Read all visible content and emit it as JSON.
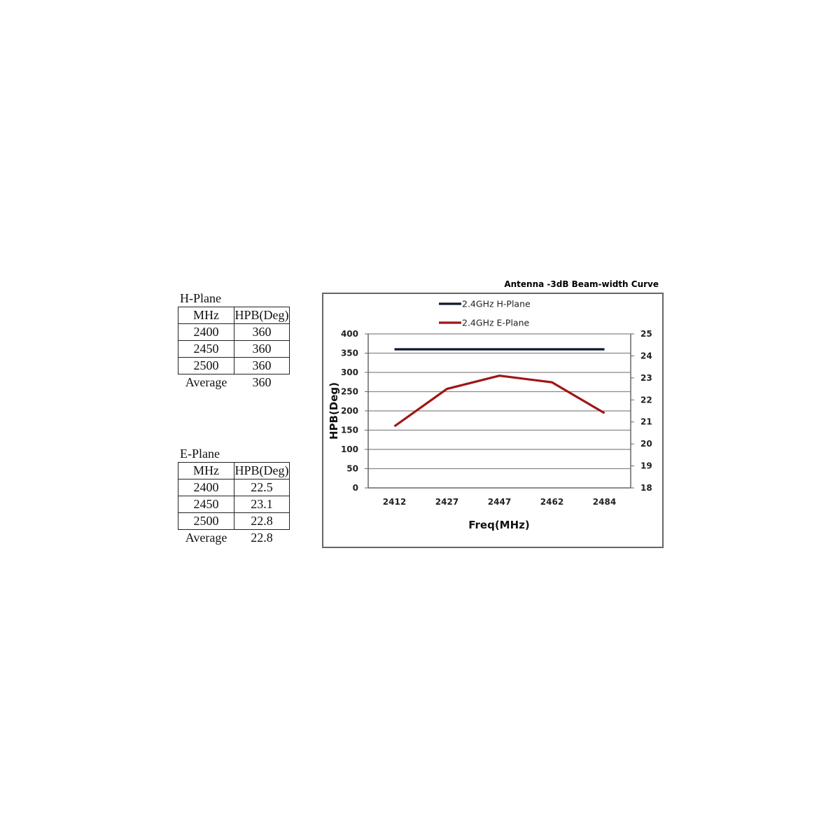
{
  "tables": [
    {
      "title": "H-Plane",
      "headers": [
        "MHz",
        "HPB(Deg)"
      ],
      "rows": [
        [
          "2400",
          "360"
        ],
        [
          "2450",
          "360"
        ],
        [
          "2500",
          "360"
        ]
      ],
      "average_label": "Average",
      "average_value": "360"
    },
    {
      "title": "E-Plane",
      "headers": [
        "MHz",
        "HPB(Deg)"
      ],
      "rows": [
        [
          "2400",
          "22.5"
        ],
        [
          "2450",
          "23.1"
        ],
        [
          "2500",
          "22.8"
        ]
      ],
      "average_label": "Average",
      "average_value": "22.8"
    }
  ],
  "chart_data": {
    "type": "line",
    "title": "Antenna -3dB Beam-width Curve",
    "xlabel": "Freq(MHz)",
    "ylabel": "HPB(Deg)",
    "categories": [
      "2412",
      "2427",
      "2447",
      "2462",
      "2484"
    ],
    "ylim": [
      0,
      400
    ],
    "yticks": [
      0,
      50,
      100,
      150,
      200,
      250,
      300,
      350,
      400
    ],
    "y2lim": [
      18,
      25
    ],
    "y2ticks": [
      18,
      19,
      20,
      21,
      22,
      23,
      24,
      25
    ],
    "grid": true,
    "legend_position": "top",
    "series": [
      {
        "name": "2.4GHz H-Plane",
        "axis": "left",
        "color": "#0d1a2e",
        "values": [
          360,
          360,
          360,
          360,
          360
        ]
      },
      {
        "name": "2.4GHz E-Plane",
        "axis": "right",
        "color": "#a01515",
        "values": [
          20.8,
          22.5,
          23.1,
          22.8,
          21.4
        ]
      }
    ]
  }
}
